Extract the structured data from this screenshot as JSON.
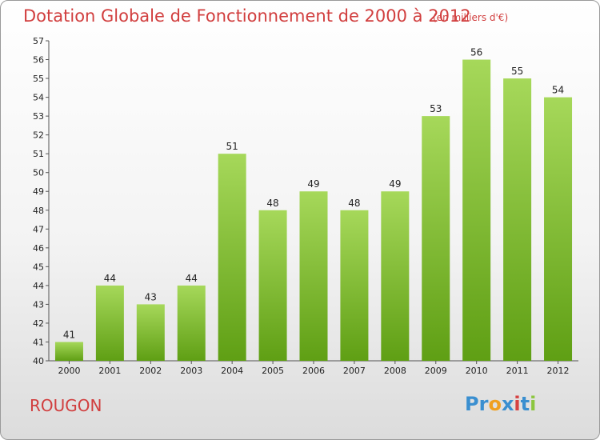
{
  "title": "Dotation Globale de Fonctionnement de 2000 à 2012",
  "subtitle": "(en milliers d'€)",
  "commune": "ROUGON",
  "logo": {
    "text": "Proxiti",
    "letters": [
      "P",
      "r",
      "o",
      "x",
      "i",
      "t",
      "i"
    ],
    "colors": [
      "#3a8fd0",
      "#3a8fd0",
      "#f0a020",
      "#3a8fd0",
      "#d64141",
      "#3a8fd0",
      "#8cc63f"
    ]
  },
  "colors": {
    "bar_top": "#a6d85a",
    "bar_bottom": "#5f9f14",
    "title": "#d13e3e"
  },
  "chart_data": {
    "type": "bar",
    "categories": [
      "2000",
      "2001",
      "2002",
      "2003",
      "2004",
      "2005",
      "2006",
      "2007",
      "2008",
      "2009",
      "2010",
      "2011",
      "2012"
    ],
    "values": [
      41,
      44,
      43,
      44,
      51,
      48,
      49,
      48,
      49,
      53,
      56,
      55,
      54
    ],
    "ylim": [
      40,
      57
    ],
    "yticks": [
      40,
      41,
      42,
      43,
      44,
      45,
      46,
      47,
      48,
      49,
      50,
      51,
      52,
      53,
      54,
      55,
      56,
      57
    ],
    "grid": false,
    "xlabel": "",
    "ylabel": ""
  }
}
